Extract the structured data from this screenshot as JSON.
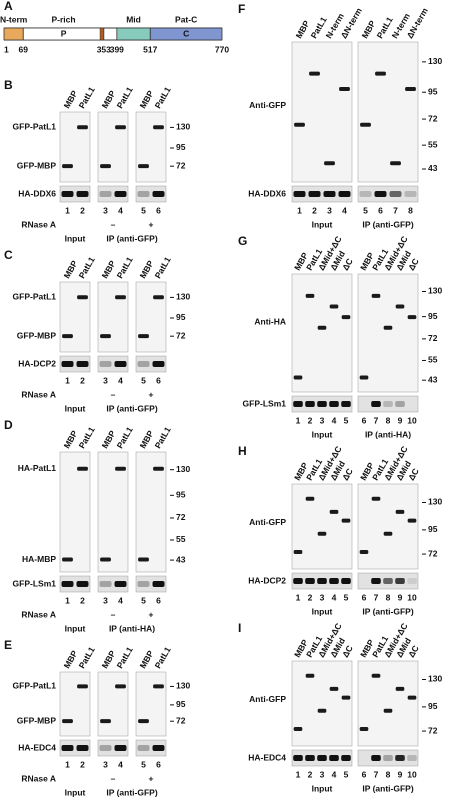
{
  "figure": {
    "A": {
      "letter": "A",
      "domains": [
        {
          "name": "N-term",
          "start": 1,
          "end": 69,
          "color": "#e9a95c"
        },
        {
          "name": "P-rich",
          "inner": "P",
          "start": 69,
          "end": 353,
          "color": "#ffffff"
        },
        {
          "name": "Mid",
          "start": 399,
          "end": 517,
          "color": "#86cbbb"
        },
        {
          "name": "Pat-C",
          "inner": "C",
          "start": 517,
          "end": 770,
          "color": "#8096d0"
        }
      ],
      "positions": [
        1,
        69,
        353,
        399,
        517,
        770
      ]
    },
    "panels": [
      {
        "letter": "B",
        "lanes": [
          [
            "MBP",
            "PatL1"
          ],
          [
            "MBP",
            "PatL1"
          ],
          [
            "MBP",
            "PatL1"
          ]
        ],
        "rows": [
          "GFP-PatL1",
          "GFP-MBP",
          "HA-DDX6"
        ],
        "markers": [
          130,
          95,
          72
        ],
        "numbers": [
          [
            1,
            2
          ],
          [
            3,
            4
          ],
          [
            5,
            6
          ]
        ],
        "rnase": {
          "label": "RNase A",
          "values": [
            "–",
            "+"
          ]
        },
        "groups": [
          "Input",
          "IP (anti-GFP)"
        ]
      },
      {
        "letter": "C",
        "lanes": [
          [
            "MBP",
            "PatL1"
          ],
          [
            "MBP",
            "PatL1"
          ],
          [
            "MBP",
            "PatL1"
          ]
        ],
        "rows": [
          "GFP-PatL1",
          "GFP-MBP",
          "HA-DCP2"
        ],
        "markers": [
          130,
          95,
          72
        ],
        "numbers": [
          [
            1,
            2
          ],
          [
            3,
            4
          ],
          [
            5,
            6
          ]
        ],
        "rnase": {
          "label": "RNase A",
          "values": [
            "–",
            "+"
          ]
        },
        "groups": [
          "Input",
          "IP (anti-GFP)"
        ]
      },
      {
        "letter": "D",
        "lanes": [
          [
            "MBP",
            "PatL1"
          ],
          [
            "MBP",
            "PatL1"
          ],
          [
            "MBP",
            "PatL1"
          ]
        ],
        "rows": [
          "HA-PatL1",
          "HA-MBP",
          "GFP-LSm1"
        ],
        "markers": [
          130,
          95,
          72,
          55,
          43
        ],
        "numbers": [
          [
            1,
            2
          ],
          [
            3,
            4
          ],
          [
            5,
            6
          ]
        ],
        "rnase": {
          "label": "RNase A",
          "values": [
            "–",
            "+"
          ]
        },
        "groups": [
          "Input",
          "IP (anti-HA)"
        ]
      },
      {
        "letter": "E",
        "lanes": [
          [
            "MBP",
            "PatL1"
          ],
          [
            "MBP",
            "PatL1"
          ],
          [
            "MBP",
            "PatL1"
          ]
        ],
        "rows": [
          "GFP-PatL1",
          "GFP-MBP",
          "HA-EDC4"
        ],
        "markers": [
          130,
          95,
          72
        ],
        "numbers": [
          [
            1,
            2
          ],
          [
            3,
            4
          ],
          [
            5,
            6
          ]
        ],
        "rnase": {
          "label": "RNase A",
          "values": [
            "–",
            "+"
          ]
        },
        "groups": [
          "Input",
          "IP (anti-GFP)"
        ]
      },
      {
        "letter": "F",
        "lanes": [
          [
            "MBP",
            "PatL1",
            "N-term",
            "ΔN-term"
          ],
          [
            "MBP",
            "PatL1",
            "N-term",
            "ΔN-term"
          ]
        ],
        "rows": [
          "Anti-GFP",
          "HA-DDX6"
        ],
        "markers": [
          130,
          95,
          72,
          55,
          43
        ],
        "numbers": [
          [
            1,
            2,
            3,
            4
          ],
          [
            5,
            6,
            7,
            8
          ]
        ],
        "groups": [
          "Input",
          "IP (anti-GFP)"
        ]
      },
      {
        "letter": "G",
        "lanes": [
          [
            "MBP",
            "PatL1",
            "ΔMid+ΔC",
            "ΔMid",
            "ΔC"
          ],
          [
            "MBP",
            "PatL1",
            "ΔMid+ΔC",
            "ΔMid",
            "ΔC"
          ]
        ],
        "rows": [
          "Anti-HA",
          "GFP-LSm1"
        ],
        "markers": [
          130,
          95,
          72,
          55,
          43
        ],
        "numbers": [
          [
            1,
            2,
            3,
            4,
            5
          ],
          [
            6,
            7,
            8,
            9,
            10
          ]
        ],
        "groups": [
          "Input",
          "IP (anti-HA)"
        ]
      },
      {
        "letter": "H",
        "lanes": [
          [
            "MBP",
            "PatL1",
            "ΔMid+ΔC",
            "ΔMid",
            "ΔC"
          ],
          [
            "MBP",
            "PatL1",
            "ΔMid+ΔC",
            "ΔMid",
            "ΔC"
          ]
        ],
        "rows": [
          "Anti-GFP",
          "HA-DCP2"
        ],
        "markers": [
          130,
          95,
          72
        ],
        "numbers": [
          [
            1,
            2,
            3,
            4,
            5
          ],
          [
            6,
            7,
            8,
            9,
            10
          ]
        ],
        "groups": [
          "Input",
          "IP (anti-GFP)"
        ]
      },
      {
        "letter": "I",
        "lanes": [
          [
            "MBP",
            "PatL1",
            "ΔMid+ΔC",
            "ΔMid",
            "ΔC"
          ],
          [
            "MBP",
            "PatL1",
            "ΔMid+ΔC",
            "ΔMid",
            "ΔC"
          ]
        ],
        "rows": [
          "Anti-GFP",
          "HA-EDC4"
        ],
        "markers": [
          130,
          95,
          72
        ],
        "numbers": [
          [
            1,
            2,
            3,
            4,
            5
          ],
          [
            6,
            7,
            8,
            9,
            10
          ]
        ],
        "groups": [
          "Input",
          "IP (anti-GFP)"
        ]
      }
    ]
  }
}
